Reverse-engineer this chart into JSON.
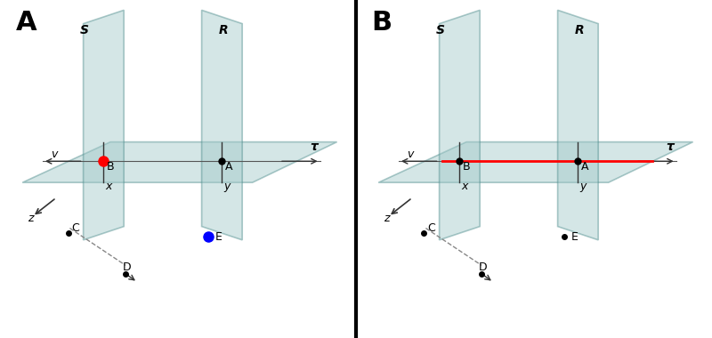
{
  "panel_A": {
    "label": "A",
    "plane_S_label": "S",
    "plane_R_label": "R",
    "plane_T_label": "τ",
    "line_v_label": "v",
    "line_x_label": "x",
    "line_y_label": "y",
    "line_z_label": "z",
    "point_A": {
      "label": "A",
      "color": "black"
    },
    "point_B": {
      "label": "B",
      "color": "red"
    },
    "point_C": {
      "label": "C",
      "color": "black"
    },
    "point_D": {
      "label": "D",
      "color": "black"
    },
    "point_E": {
      "label": "E",
      "color": "blue"
    },
    "show_colored_dots": true
  },
  "panel_B": {
    "label": "B",
    "plane_S_label": "S",
    "plane_R_label": "R",
    "plane_T_label": "τ",
    "line_v_label": "v",
    "line_x_label": "x",
    "line_y_label": "y",
    "line_z_label": "z",
    "point_A": {
      "label": "A",
      "color": "black"
    },
    "point_B": {
      "label": "B",
      "color": "black"
    },
    "point_C": {
      "label": "C",
      "color": "black"
    },
    "point_D": {
      "label": "D",
      "color": "black"
    },
    "point_E": {
      "label": "E",
      "color": "black"
    },
    "show_line_AB": true,
    "show_colored_dots": false
  },
  "plane_color": "#a0c8c8",
  "plane_alpha": 0.45,
  "bg_color": "#ffffff",
  "border_color": "#000000"
}
